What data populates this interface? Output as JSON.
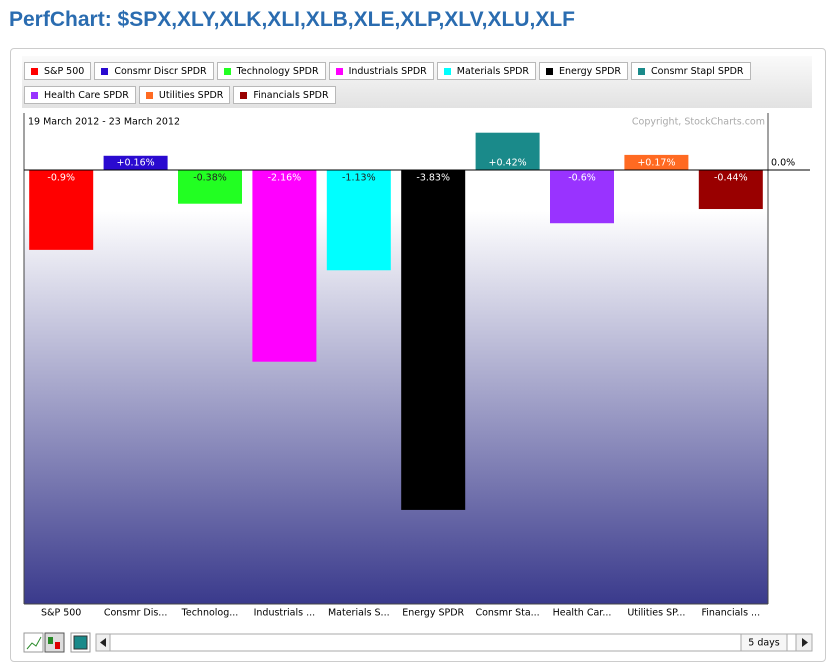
{
  "header": {
    "title": "PerfChart: $SPX,XLY,XLK,XLI,XLB,XLE,XLP,XLV,XLU,XLF"
  },
  "chart_data": {
    "type": "bar",
    "date_range": "19 March 2012 - 23 March 2012",
    "copyright": "Copyright, StockCharts.com",
    "legend_labels": [
      "S&P 500",
      "Consmr Discr SPDR",
      "Technology SPDR",
      "Industrials SPDR",
      "Materials SPDR",
      "Energy SPDR",
      "Consmr Stapl SPDR",
      "Health Care SPDR",
      "Utilities SPDR",
      "Financials SPDR"
    ],
    "categories": [
      "S&P 500",
      "Consmr Dis...",
      "Technolog...",
      "Industrials ...",
      "Materials S...",
      "Energy SPDR",
      "Consmr Sta...",
      "Health Car...",
      "Utilities SP...",
      "Financials ..."
    ],
    "values": [
      -0.9,
      0.16,
      -0.38,
      -2.16,
      -1.13,
      -3.83,
      0.42,
      -0.6,
      0.17,
      -0.44
    ],
    "value_labels": [
      "-0.9%",
      "+0.16%",
      "-0.38%",
      "-2.16%",
      "-1.13%",
      "-3.83%",
      "+0.42%",
      "-0.6%",
      "+0.17%",
      "-0.44%"
    ],
    "colors": [
      "#ff0000",
      "#2a0ad0",
      "#22ff22",
      "#ff00ff",
      "#00ffff",
      "#000000",
      "#1a8a8a",
      "#9933ff",
      "#ff6a22",
      "#990000"
    ],
    "ylim": [
      -4.89,
      0.642
    ],
    "yticks": [
      {
        "value": 0,
        "label": "0.0%"
      }
    ]
  },
  "controls": {
    "period": "5 days"
  }
}
